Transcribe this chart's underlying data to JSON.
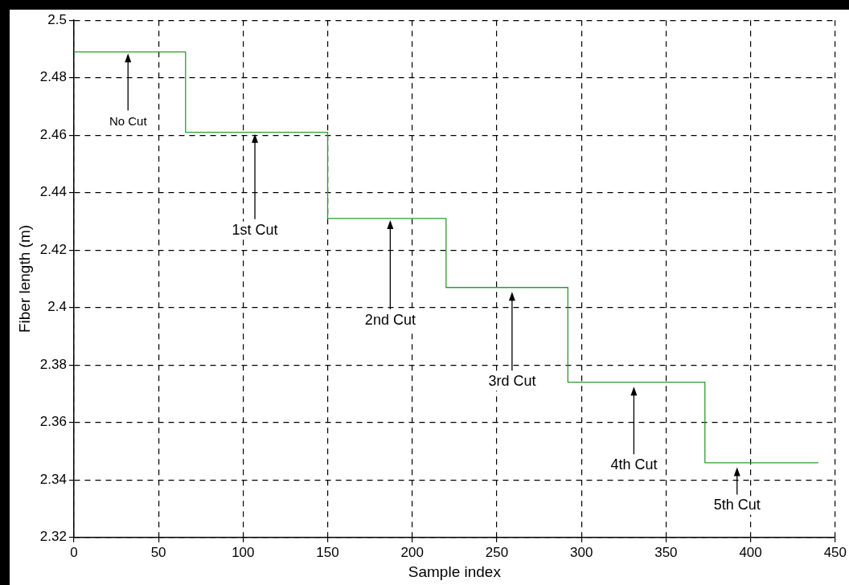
{
  "chart_data": {
    "type": "step",
    "xlabel": "Sample index",
    "ylabel": "Fiber length (m)",
    "x": [
      0,
      66,
      150,
      220,
      292,
      373,
      440
    ],
    "series": [
      {
        "color": "#2e9b2e",
        "values": [
          2.489,
          2.461,
          2.431,
          2.407,
          2.374,
          2.346,
          2.346
        ]
      }
    ],
    "xlim": [
      0,
      450
    ],
    "xticks": [
      0,
      50,
      100,
      150,
      200,
      250,
      300,
      350,
      400,
      450
    ],
    "ylim": [
      2.32,
      2.5
    ],
    "yticks": [
      2.32,
      2.34,
      2.36,
      2.38,
      2.4,
      2.42,
      2.44,
      2.46,
      2.48,
      2.5
    ],
    "grid": true,
    "legend": false,
    "marker": "none",
    "line_style": "solid",
    "annotations": [
      {
        "text": "No Cut",
        "x": 32,
        "y": 2.489
      },
      {
        "text": "1st Cut",
        "x": 107,
        "y": 2.461
      },
      {
        "text": "2nd Cut",
        "x": 187,
        "y": 2.431
      },
      {
        "text": "3rd Cut",
        "x": 259,
        "y": 2.406
      },
      {
        "text": "4th Cut",
        "x": 331,
        "y": 2.373
      },
      {
        "text": "5th Cut",
        "x": 392,
        "y": 2.345
      }
    ]
  }
}
